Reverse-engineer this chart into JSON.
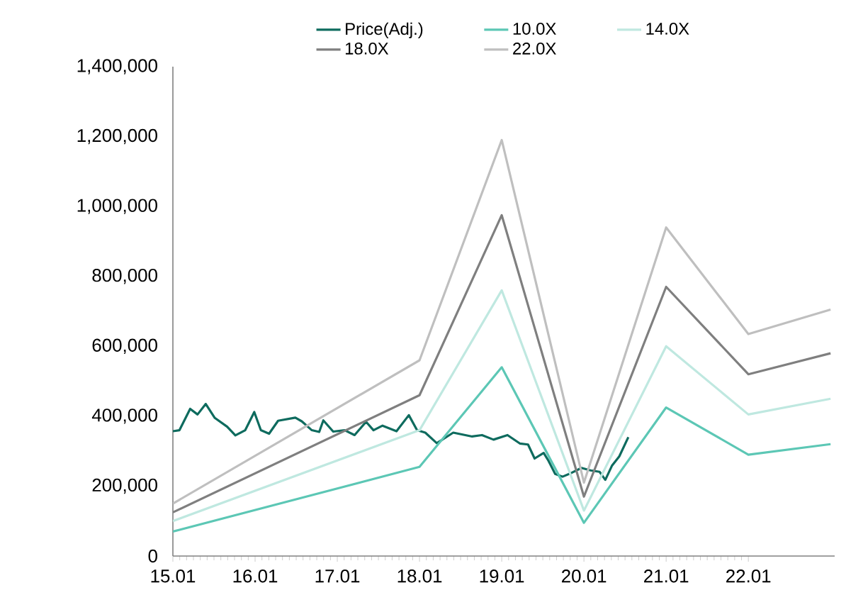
{
  "chart_data": {
    "type": "line",
    "xlim": [
      15.01,
      23.06
    ],
    "xticks": [
      15.01,
      16.01,
      17.01,
      18.01,
      19.01,
      20.01,
      21.01,
      22.01
    ],
    "ylim": [
      0,
      1400000
    ],
    "yticks": [
      {
        "value": 0,
        "label": "0"
      },
      {
        "value": 200000,
        "label": "200,000"
      },
      {
        "value": 400000,
        "label": "400,000"
      },
      {
        "value": 600000,
        "label": "600,000"
      },
      {
        "value": 800000,
        "label": "800,000"
      },
      {
        "value": 1000000,
        "label": "1,000,000"
      },
      {
        "value": 1200000,
        "label": "1,200,000"
      },
      {
        "value": 1400000,
        "label": "1,400,000"
      }
    ],
    "legend": "top",
    "line_style": "solid",
    "series": [
      {
        "name": "Price(Adj.)",
        "color": "#0e6b5e",
        "x": [
          15.01,
          15.09,
          15.22,
          15.31,
          15.41,
          15.52,
          15.67,
          15.77,
          15.89,
          16.0,
          16.08,
          16.18,
          16.29,
          16.5,
          16.58,
          16.7,
          16.79,
          16.84,
          16.96,
          17.1,
          17.22,
          17.36,
          17.45,
          17.56,
          17.73,
          17.88,
          17.98,
          18.08,
          18.22,
          18.42,
          18.65,
          18.77,
          18.91,
          19.08,
          19.23,
          19.33,
          19.41,
          19.52,
          19.58,
          19.66,
          19.75,
          19.86,
          19.98,
          20.09,
          20.2,
          20.27,
          20.35,
          20.44,
          20.55
        ],
        "values": [
          357000,
          360000,
          421000,
          405000,
          435000,
          395000,
          370000,
          345000,
          360000,
          412000,
          360000,
          350000,
          387000,
          396000,
          385000,
          360000,
          355000,
          388000,
          356000,
          360000,
          346000,
          384000,
          360000,
          373000,
          357000,
          403000,
          360000,
          353000,
          323000,
          353000,
          342000,
          346000,
          333000,
          346000,
          322000,
          319000,
          279000,
          295000,
          272000,
          235000,
          227000,
          238000,
          252000,
          245000,
          241000,
          218000,
          258000,
          285000,
          340000
        ]
      },
      {
        "name": "10.0X",
        "color": "#5cc7b5",
        "x": [
          15.01,
          18.01,
          19.01,
          20.01,
          21.01,
          22.01,
          23.01
        ],
        "values": [
          70000,
          255000,
          540000,
          95000,
          425000,
          290000,
          320000
        ]
      },
      {
        "name": "14.0X",
        "color": "#bfe8e0",
        "x": [
          15.01,
          18.01,
          19.01,
          20.01,
          21.01,
          22.01,
          23.01
        ],
        "values": [
          100000,
          360000,
          760000,
          130000,
          600000,
          405000,
          450000
        ]
      },
      {
        "name": "18.0X",
        "color": "#7f7f7f",
        "x": [
          15.01,
          18.01,
          19.01,
          20.01,
          21.01,
          22.01,
          23.01
        ],
        "values": [
          125000,
          460000,
          975000,
          170000,
          770000,
          520000,
          580000
        ]
      },
      {
        "name": "22.0X",
        "color": "#bfbfbf",
        "x": [
          15.01,
          18.01,
          19.01,
          20.01,
          21.01,
          22.01,
          23.01
        ],
        "values": [
          150000,
          560000,
          1190000,
          210000,
          940000,
          635000,
          705000
        ]
      }
    ]
  }
}
